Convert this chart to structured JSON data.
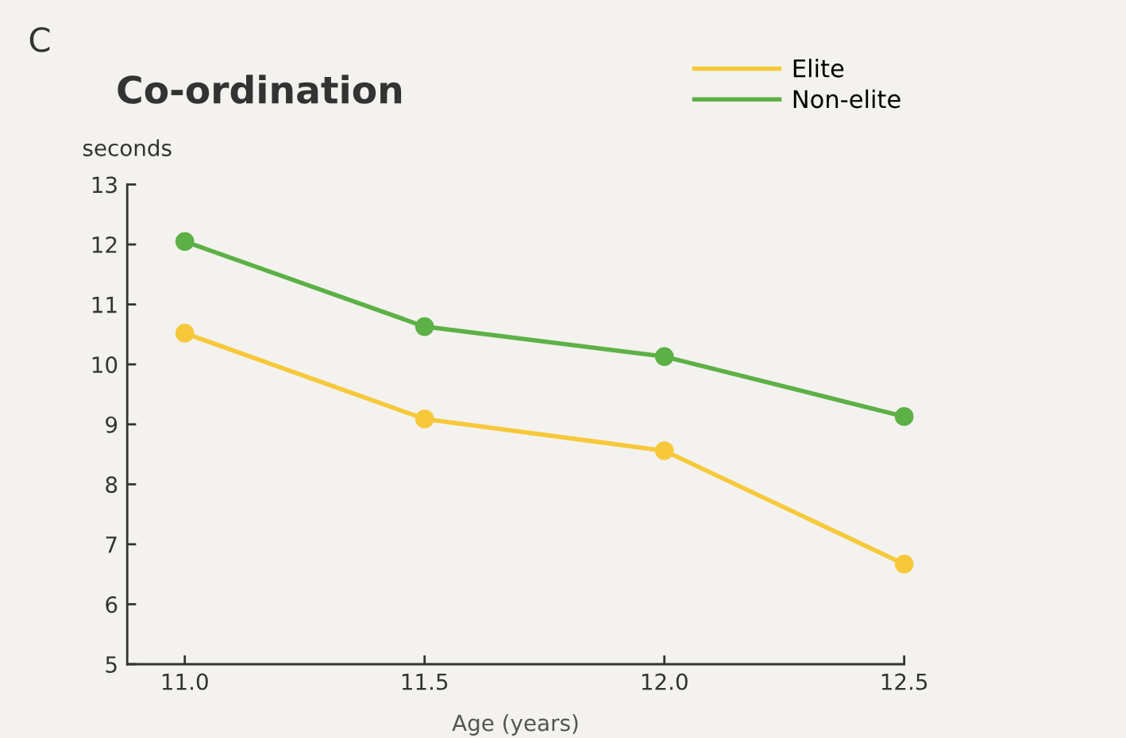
{
  "chart_data": {
    "type": "line",
    "title": "Co-ordination",
    "ylabel": "seconds",
    "xlabel": "Age (years)",
    "annotations": [
      "C"
    ],
    "x": [
      11.0,
      11.5,
      12.0,
      12.5
    ],
    "series": [
      {
        "name": "Elite",
        "color": "#f7c83a",
        "values": [
          10.52,
          9.09,
          8.56,
          6.67
        ]
      },
      {
        "name": "Non-elite",
        "color": "#5cb046",
        "values": [
          12.05,
          10.63,
          10.13,
          9.13
        ]
      }
    ],
    "xlim": [
      10.88,
      12.5
    ],
    "xticks": [
      {
        "value": 11.0,
        "label": "11.0"
      },
      {
        "value": 11.5,
        "label": "11.5"
      },
      {
        "value": 12.0,
        "label": "12.0"
      },
      {
        "value": 12.5,
        "label": "12.5"
      }
    ],
    "ylim": [
      5,
      13
    ],
    "yticks": [
      5,
      6,
      7,
      8,
      9,
      10,
      11,
      12,
      13
    ],
    "marker": "circle",
    "line_style": "solid",
    "grid": false,
    "legend": "top right"
  }
}
